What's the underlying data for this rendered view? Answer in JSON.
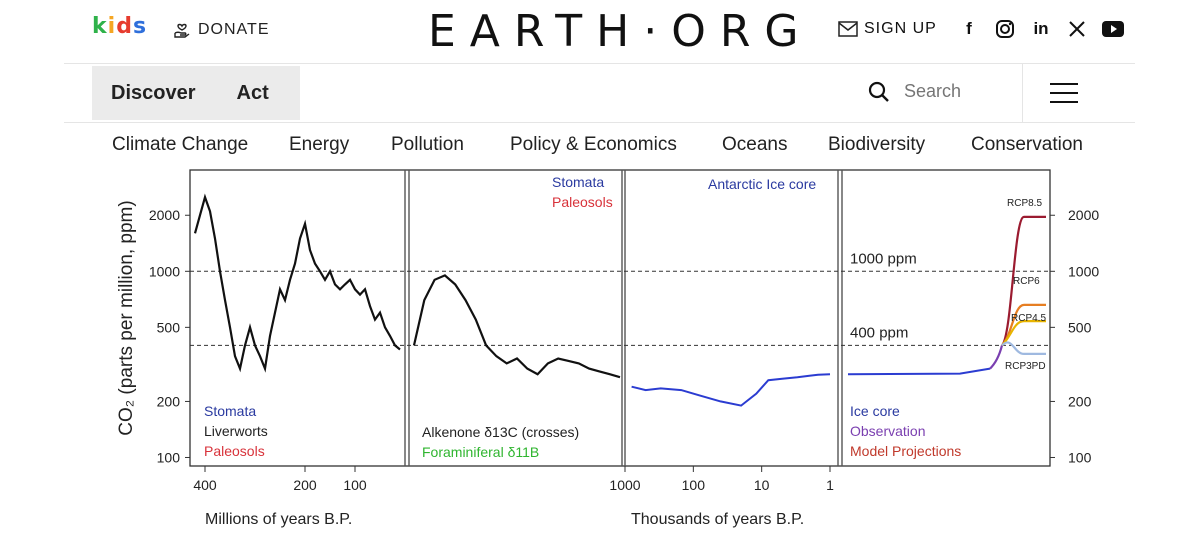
{
  "header": {
    "kids_label": "kids",
    "kids_colors": [
      "#2fb24a",
      "#f5a623",
      "#e63b2e",
      "#2f6fdb"
    ],
    "donate_label": "DONATE",
    "logo": "EARTH·ORG",
    "signup_label": "SIGN UP",
    "social_icons": [
      "facebook-icon",
      "instagram-icon",
      "linkedin-icon",
      "x-icon",
      "youtube-icon"
    ]
  },
  "nav": {
    "tabs": [
      {
        "label": "Discover"
      },
      {
        "label": "Act"
      }
    ],
    "search_placeholder": "Search"
  },
  "categories": [
    "Climate Change",
    "Energy",
    "Pollution",
    "Policy & Economics",
    "Oceans",
    "Biodiversity",
    "Conservation"
  ],
  "chart_data": {
    "type": "line",
    "ylabel": "CO₂ (parts per million, ppm)",
    "yscale": "log",
    "ylim": [
      90,
      3500
    ],
    "yticks": [
      100,
      200,
      500,
      1000,
      2000
    ],
    "reference_lines": [
      {
        "value": 1000,
        "label": "1000 ppm"
      },
      {
        "value": 400,
        "label": "400 ppm"
      }
    ],
    "panels": [
      {
        "xlabel": "Millions of years B.P.",
        "xticks": [
          400,
          200,
          100
        ],
        "legend": [
          "Stomata",
          "Liverworts",
          "Paleosols"
        ],
        "legend_colors": [
          "#2a3aa0",
          "#222222",
          "#d8323a"
        ],
        "series": {
          "x": [
            420,
            410,
            400,
            390,
            380,
            370,
            360,
            350,
            340,
            330,
            320,
            310,
            300,
            290,
            280,
            270,
            260,
            250,
            240,
            230,
            220,
            210,
            200,
            190,
            180,
            170,
            160,
            150,
            140,
            130,
            120,
            110,
            100,
            90,
            80,
            70,
            60,
            50,
            40,
            30,
            20,
            10
          ],
          "y": [
            1600,
            2000,
            2500,
            2100,
            1500,
            1000,
            700,
            500,
            350,
            300,
            400,
            500,
            400,
            350,
            300,
            450,
            600,
            800,
            700,
            900,
            1100,
            1500,
            1800,
            1300,
            1100,
            1000,
            900,
            1000,
            850,
            800,
            850,
            900,
            800,
            750,
            800,
            650,
            550,
            600,
            500,
            450,
            400,
            380
          ]
        }
      },
      {
        "legend_top": [
          "Stomata",
          "Paleosols"
        ],
        "legend_top_colors": [
          "#2a3aa0",
          "#d8323a"
        ],
        "legend": [
          "Alkenone δ13C (crosses)",
          "Foraminiferal δ11B"
        ],
        "legend_colors": [
          "#222222",
          "#2fb52f"
        ],
        "series": {
          "x": [
            60,
            57,
            54,
            51,
            48,
            45,
            42,
            39,
            36,
            33,
            30,
            27,
            24,
            21,
            18,
            15,
            12,
            9,
            6,
            3,
            0
          ],
          "y": [
            400,
            700,
            900,
            950,
            850,
            700,
            550,
            400,
            350,
            320,
            340,
            300,
            280,
            320,
            340,
            330,
            320,
            300,
            290,
            280,
            270
          ]
        }
      },
      {
        "title": "Antarctic Ice core",
        "xlabel": "Thousands of years B.P.",
        "xticks": [
          1000,
          100,
          10,
          1
        ],
        "series": {
          "x": [
            800,
            500,
            300,
            150,
            80,
            40,
            20,
            12,
            8,
            5,
            3,
            2,
            1.5,
            1
          ],
          "y": [
            240,
            230,
            235,
            230,
            215,
            200,
            190,
            220,
            260,
            265,
            270,
            275,
            278,
            280
          ]
        }
      },
      {
        "legend": [
          "Ice core",
          "Observation",
          "Model Projections"
        ],
        "legend_colors": [
          "#2a3aa0",
          "#7a3fb0",
          "#c0392b"
        ],
        "scenarios": [
          {
            "name": "RCP8.5",
            "end": 1960,
            "color": "#9b1b30"
          },
          {
            "name": "RCP6",
            "end": 660,
            "color": "#e67e22"
          },
          {
            "name": "RCP4.5",
            "end": 540,
            "color": "#e8b400"
          },
          {
            "name": "RCP3PD",
            "end": 360,
            "color": "#9fb9e0"
          }
        ]
      }
    ]
  }
}
